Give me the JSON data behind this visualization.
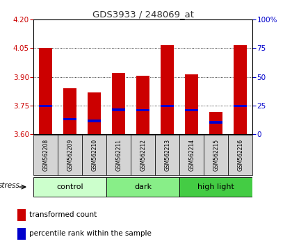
{
  "title": "GDS3933 / 248069_at",
  "samples": [
    "GSM562208",
    "GSM562209",
    "GSM562210",
    "GSM562211",
    "GSM562212",
    "GSM562213",
    "GSM562214",
    "GSM562215",
    "GSM562216"
  ],
  "bar_values": [
    4.05,
    3.84,
    3.82,
    3.92,
    3.905,
    4.065,
    3.915,
    3.715,
    4.065
  ],
  "blue_markers": [
    3.748,
    3.678,
    3.668,
    3.728,
    3.725,
    3.748,
    3.726,
    3.662,
    3.748
  ],
  "bar_bottom": 3.6,
  "ylim": [
    3.6,
    4.2
  ],
  "yticks_left": [
    3.6,
    3.75,
    3.9,
    4.05,
    4.2
  ],
  "yticks_right": [
    0,
    25,
    50,
    75,
    100
  ],
  "bar_color": "#cc0000",
  "blue_color": "#0000cc",
  "bar_width": 0.55,
  "groups": [
    {
      "label": "control",
      "start": 0,
      "end": 3,
      "color": "#ccffcc"
    },
    {
      "label": "dark",
      "start": 3,
      "end": 6,
      "color": "#88ee88"
    },
    {
      "label": "high light",
      "start": 6,
      "end": 9,
      "color": "#44cc44"
    }
  ],
  "stress_label": "stress",
  "legend_red": "transformed count",
  "legend_blue": "percentile rank within the sample",
  "title_color": "#333333",
  "left_tick_color": "#cc0000",
  "right_tick_color": "#0000cc",
  "background_color": "#ffffff"
}
